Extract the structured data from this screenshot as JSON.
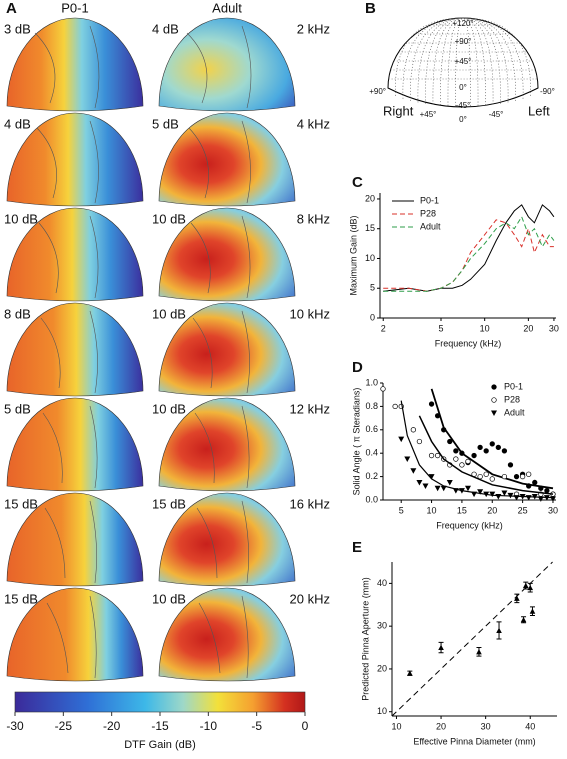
{
  "panel_a": {
    "label": "A",
    "column_titles": [
      "P0-1",
      "Adult"
    ],
    "rows": [
      {
        "p0": "3 dB",
        "adult": "4 dB",
        "frequency": "2 kHz"
      },
      {
        "p0": "4 dB",
        "adult": "5 dB",
        "frequency": "4 kHz"
      },
      {
        "p0": "10 dB",
        "adult": "10 dB",
        "frequency": "8 kHz"
      },
      {
        "p0": "8 dB",
        "adult": "10 dB",
        "frequency": "10 kHz"
      },
      {
        "p0": "5 dB",
        "adult": "10 dB",
        "frequency": "12 kHz"
      },
      {
        "p0": "15 dB",
        "adult": "15 dB",
        "frequency": "16 kHz"
      },
      {
        "p0": "15 dB",
        "adult": "10 dB",
        "frequency": "20 kHz"
      }
    ],
    "colorbar": {
      "label": "DTF Gain (dB)",
      "lim": [
        -30,
        0
      ],
      "ticks": [
        -30,
        -25,
        -20,
        -15,
        -10,
        -5,
        0
      ]
    }
  },
  "panel_b": {
    "label": "B",
    "elevation_labels": [
      "+120°",
      "+90°",
      "+45°",
      "0°",
      "-45°"
    ],
    "side_labels": [
      "+90°",
      "-90°"
    ],
    "bottom_labels": [
      "+45°",
      "0°",
      "-45°"
    ],
    "right": "Right",
    "left": "Left"
  },
  "chart_data": [
    {
      "type": "line",
      "panel": "C",
      "x_label": "Frequency (kHz)",
      "y_label": "Maximum Gain (dB)",
      "xscale": "log",
      "xlim": [
        1.9,
        31
      ],
      "xticks": [
        2,
        5,
        10,
        20,
        30
      ],
      "ylim": [
        0,
        21
      ],
      "yticks": [
        0,
        5,
        10,
        15,
        20
      ],
      "x": [
        2,
        3,
        4,
        5,
        6,
        7,
        8,
        10,
        12,
        14,
        16,
        18,
        20,
        22,
        25,
        28,
        30
      ],
      "series": [
        {
          "name": "P0-1",
          "color": "#000000",
          "line_style": "solid",
          "values": [
            4.5,
            5,
            4.5,
            5,
            5,
            5.5,
            6.5,
            9,
            13,
            16,
            18,
            19,
            17,
            16,
            19,
            18,
            17
          ]
        },
        {
          "name": "P28",
          "color": "#d9302a",
          "line_style": "dashed",
          "values": [
            5,
            5,
            4.5,
            5,
            6,
            8,
            11,
            14,
            16.5,
            16,
            14,
            12,
            15,
            11,
            14,
            12,
            12
          ]
        },
        {
          "name": "Adult",
          "color": "#2e9e4a",
          "line_style": "dashed",
          "values": [
            4.5,
            4.5,
            4.5,
            5,
            6,
            8,
            10,
            12.5,
            15,
            16,
            15,
            17,
            14,
            15,
            12,
            14,
            13
          ]
        }
      ]
    },
    {
      "type": "scatter",
      "panel": "D",
      "x_label": "Frequency (kHz)",
      "y_label": "Solid Angle ( π Steradians)",
      "xlim": [
        2,
        30.5
      ],
      "xticks": [
        5,
        10,
        15,
        20,
        25,
        30
      ],
      "ylim": [
        0,
        1
      ],
      "yticks": [
        {
          "value": 0,
          "label": "0.0"
        },
        0.2,
        0.4,
        0.6,
        0.8,
        {
          "value": 1,
          "label": "1.0"
        }
      ],
      "fit_x": [
        4,
        5,
        6,
        8,
        10,
        12,
        15,
        20,
        25,
        30
      ],
      "series": [
        {
          "name": "P0-1",
          "color": "#000000",
          "marker": "filled-circle",
          "x": [
            10,
            11,
            12,
            13,
            14,
            15,
            16,
            17,
            18,
            19,
            20,
            21,
            22,
            23,
            24,
            25,
            26,
            27,
            28,
            29,
            30
          ],
          "values": [
            0.82,
            0.72,
            0.6,
            0.5,
            0.42,
            0.4,
            0.32,
            0.38,
            0.45,
            0.42,
            0.48,
            0.45,
            0.42,
            0.3,
            0.2,
            0.22,
            0.12,
            0.15,
            0.1,
            0.08,
            0.05
          ],
          "fit": [
            null,
            null,
            null,
            null,
            0.95,
            0.62,
            0.4,
            0.22,
            0.14,
            0.1
          ]
        },
        {
          "name": "P28",
          "color": "#000000",
          "marker": "open-circle",
          "x": [
            2,
            4,
            5,
            7,
            8,
            10,
            11,
            12,
            13,
            14,
            15,
            16,
            17,
            18,
            19,
            20,
            22,
            24,
            25,
            26,
            28,
            30
          ],
          "values": [
            0.95,
            0.8,
            0.8,
            0.6,
            0.5,
            0.38,
            0.38,
            0.35,
            0.3,
            0.35,
            0.3,
            0.33,
            0.22,
            0.2,
            0.22,
            0.18,
            0.2,
            0.05,
            0.2,
            0.22,
            0.05,
            0.05
          ],
          "fit": [
            null,
            null,
            null,
            0.72,
            0.5,
            0.35,
            0.24,
            0.13,
            0.08,
            0.05
          ]
        },
        {
          "name": "Adult",
          "color": "#000000",
          "marker": "triangle",
          "x": [
            5,
            6,
            7,
            8,
            9,
            10,
            11,
            12,
            13,
            14,
            15,
            16,
            17,
            18,
            19,
            20,
            21,
            22,
            23,
            24,
            25,
            26,
            27,
            28,
            29,
            30
          ],
          "values": [
            0.52,
            0.35,
            0.25,
            0.15,
            0.12,
            0.2,
            0.1,
            0.1,
            0.15,
            0.08,
            0.08,
            0.1,
            0.05,
            0.07,
            0.05,
            0.05,
            0.03,
            0.06,
            0.04,
            0.02,
            0.03,
            0.02,
            0.03,
            0.01,
            0.02,
            0.01
          ],
          "fit": [
            null,
            0.85,
            0.55,
            0.3,
            0.18,
            0.12,
            0.08,
            0.04,
            0.03,
            0.02
          ]
        }
      ]
    },
    {
      "type": "errorbar",
      "panel": "E",
      "x_label": "Effective Pinna Diameter (mm)",
      "y_label": "Predicted Pinna Aperture (mm)",
      "xlim": [
        9,
        46
      ],
      "xticks": [
        10,
        20,
        30,
        40
      ],
      "ylim": [
        9,
        45
      ],
      "yticks": [
        10,
        20,
        30,
        40
      ],
      "identity_line": true,
      "x": [
        13,
        20,
        28.5,
        33,
        37,
        38.5,
        39,
        40,
        40.5
      ],
      "values": [
        19,
        25,
        24,
        29,
        36.5,
        31.5,
        39.5,
        39,
        33.5
      ],
      "errors": [
        0.5,
        1.2,
        1,
        2,
        1,
        0.7,
        0.8,
        1,
        1
      ]
    }
  ]
}
